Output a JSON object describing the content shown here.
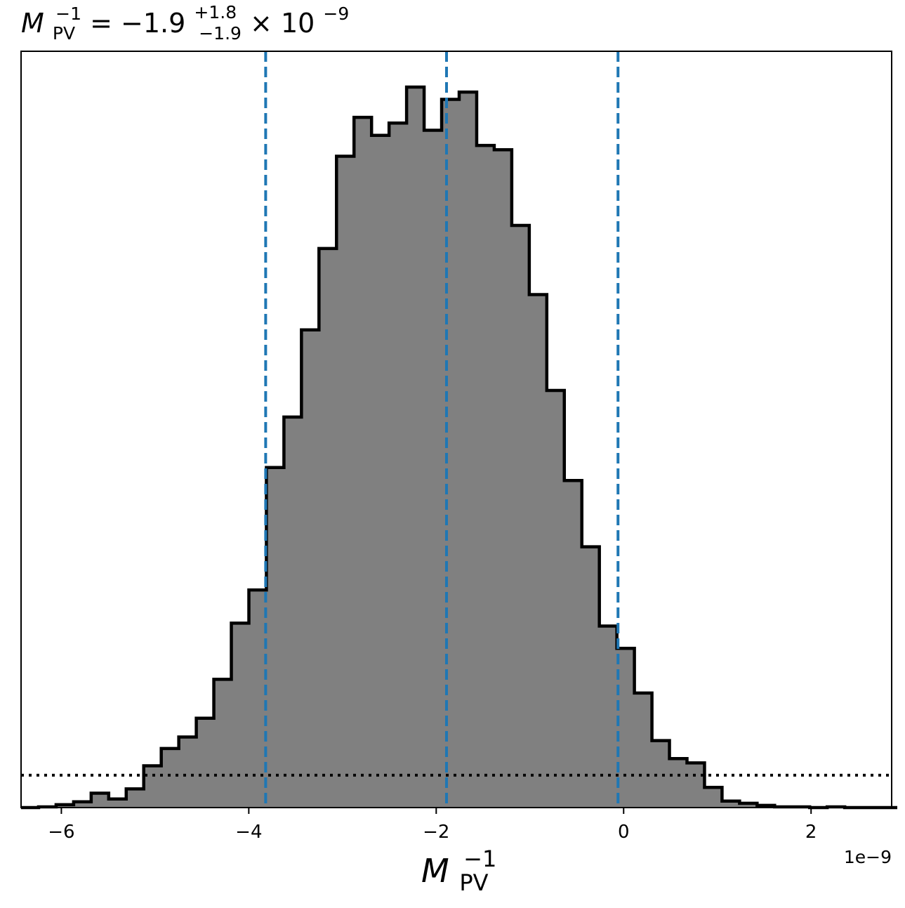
{
  "chart_data": {
    "type": "bar",
    "title": {
      "symbol": "M",
      "sub": "PV",
      "sup": "−1",
      "eq": " = −1.9",
      "err_plus": "+1.8",
      "err_minus": "−1.9",
      "times": " × 10",
      "exp": "−9"
    },
    "xlabel": {
      "symbol": "M",
      "sub": "PV",
      "sup": "−1"
    },
    "offset_text": "1e−9",
    "xlim": [
      -6.43,
      2.86
    ],
    "ylim": [
      0,
      1.0
    ],
    "x_ticks": [
      {
        "value": -6,
        "label": "−6"
      },
      {
        "value": -4,
        "label": "−4"
      },
      {
        "value": -2,
        "label": "−2"
      },
      {
        "value": 0,
        "label": "0"
      },
      {
        "value": 2,
        "label": "2"
      }
    ],
    "bin_start": -6.43,
    "bin_width": 0.187,
    "values": [
      0.0,
      0.001,
      0.004,
      0.008,
      0.02,
      0.012,
      0.026,
      0.058,
      0.082,
      0.098,
      0.124,
      0.178,
      0.256,
      0.302,
      0.472,
      0.542,
      0.663,
      0.776,
      0.904,
      0.958,
      0.933,
      0.95,
      1.0,
      0.94,
      0.983,
      0.993,
      0.919,
      0.913,
      0.808,
      0.712,
      0.579,
      0.454,
      0.362,
      0.252,
      0.221,
      0.159,
      0.093,
      0.068,
      0.062,
      0.028,
      0.009,
      0.006,
      0.003,
      0.001,
      0.001,
      0.0,
      0.001,
      0.0,
      0.0,
      0.0
    ],
    "fill_color": "#808080",
    "edge_color": "#000000",
    "vlines": {
      "color": "#1f77b4",
      "style": "dashed",
      "values": [
        -3.82,
        -1.89,
        -0.06
      ]
    },
    "hline": {
      "color": "#000000",
      "style": "dotted",
      "value": 0.045
    }
  }
}
